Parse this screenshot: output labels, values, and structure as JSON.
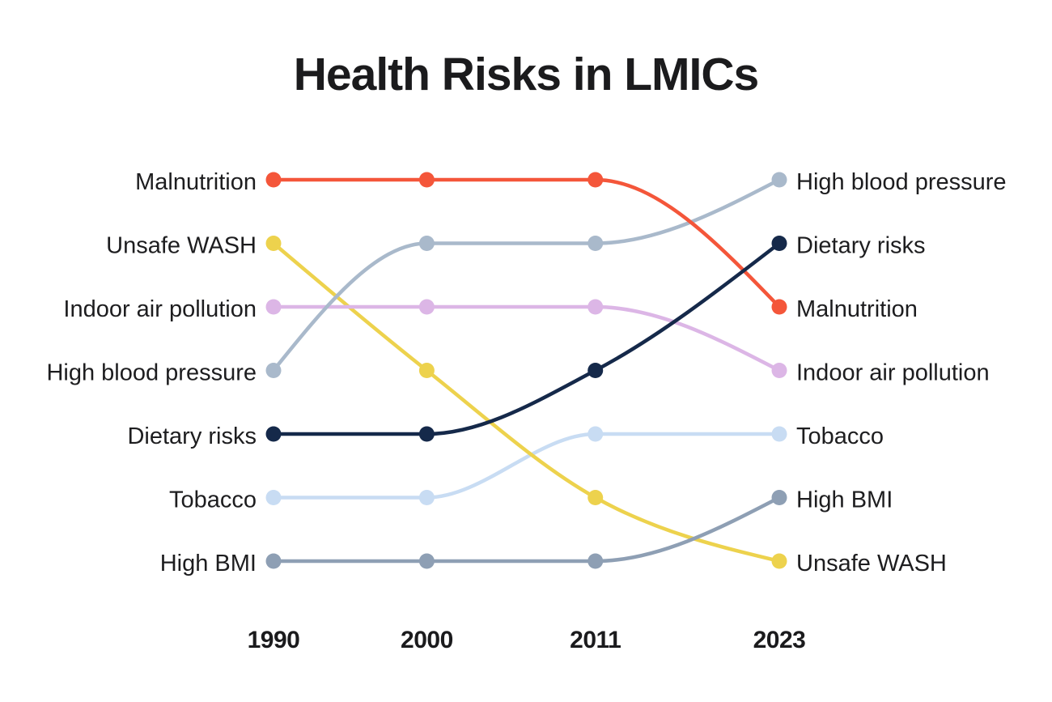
{
  "page": {
    "background_color": "#ffffff",
    "text_color": "#1d1d1f"
  },
  "chart_data": {
    "type": "line",
    "subtype": "bump-rank-chart",
    "title": "Health Risks in LMICs",
    "x": [
      1990,
      2000,
      2011,
      2023
    ],
    "x_tick_labels": [
      "1990",
      "2000",
      "2011",
      "2023"
    ],
    "y_encoding": "rank",
    "y_range": [
      1,
      7
    ],
    "y_inverted": true,
    "grid": false,
    "legend_position": "line-endpoint-labels",
    "series": [
      {
        "name": "Malnutrition",
        "color": "#F4563A",
        "ranks": [
          1,
          1,
          1,
          3
        ]
      },
      {
        "name": "Unsafe WASH",
        "color": "#EDD24D",
        "ranks": [
          2,
          4,
          6,
          7
        ]
      },
      {
        "name": "Indoor air pollution",
        "color": "#DCB6E6",
        "ranks": [
          3,
          3,
          3,
          4
        ]
      },
      {
        "name": "High blood pressure",
        "color": "#A9B9CB",
        "ranks": [
          4,
          2,
          2,
          1
        ]
      },
      {
        "name": "Dietary risks",
        "color": "#15294A",
        "ranks": [
          5,
          5,
          4,
          2
        ]
      },
      {
        "name": "Tobacco",
        "color": "#C8DCF3",
        "ranks": [
          6,
          6,
          5,
          5
        ]
      },
      {
        "name": "High BMI",
        "color": "#8E9FB4",
        "ranks": [
          7,
          7,
          7,
          6
        ]
      }
    ],
    "left_label_order_1990": [
      "Malnutrition",
      "Unsafe WASH",
      "Indoor air pollution",
      "High blood pressure",
      "Dietary risks",
      "Tobacco",
      "High BMI"
    ],
    "right_label_order_2023": [
      "High blood pressure",
      "Dietary risks",
      "Malnutrition",
      "Indoor air pollution",
      "Tobacco",
      "High BMI",
      "Unsafe WASH"
    ],
    "draw_order": [
      "Tobacco",
      "Unsafe WASH",
      "Indoor air pollution",
      "High blood pressure",
      "Malnutrition",
      "Dietary risks",
      "High BMI"
    ]
  }
}
